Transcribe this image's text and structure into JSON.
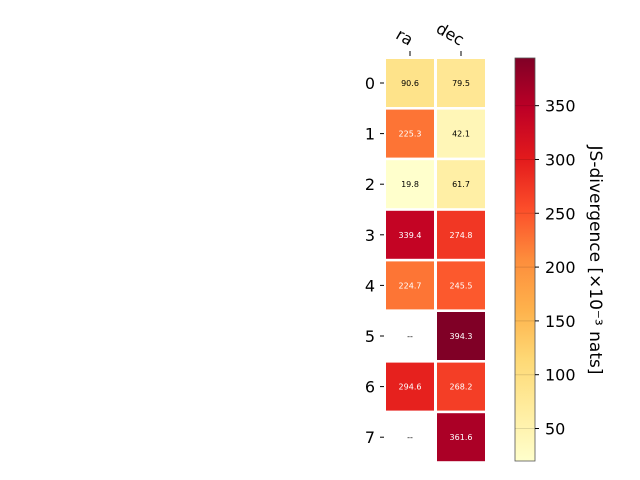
{
  "chart_data": {
    "type": "heatmap",
    "columns": [
      "ra",
      "dec"
    ],
    "rows": [
      "0",
      "1",
      "2",
      "3",
      "4",
      "5",
      "6",
      "7"
    ],
    "values": [
      [
        90.6,
        79.5
      ],
      [
        225.3,
        42.1
      ],
      [
        19.8,
        61.7
      ],
      [
        339.4,
        274.8
      ],
      [
        224.7,
        245.5
      ],
      [
        null,
        394.3
      ],
      [
        294.6,
        268.2
      ],
      [
        null,
        361.6
      ]
    ],
    "cell_labels": [
      [
        "90.6",
        "79.5"
      ],
      [
        "225.3",
        "42.1"
      ],
      [
        "19.8",
        "61.7"
      ],
      [
        "339.4",
        "274.8"
      ],
      [
        "224.7",
        "245.5"
      ],
      [
        "--",
        "394.3"
      ],
      [
        "294.6",
        "268.2"
      ],
      [
        "--",
        "361.6"
      ]
    ],
    "colorbar": {
      "label": "JS-divergence [×10⁻³ nats]",
      "ticks": [
        50,
        100,
        150,
        200,
        250,
        300,
        350
      ],
      "range": [
        19.8,
        394.3
      ],
      "colormap": "YlOrRd"
    }
  }
}
